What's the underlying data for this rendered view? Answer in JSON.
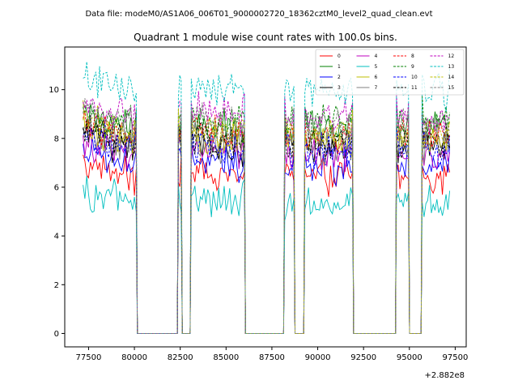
{
  "suptitle": "Data file: modeM0/AS1A06_006T01_9000002720_18362cztM0_level2_quad_clean.evt",
  "chart_data": {
    "type": "line",
    "title": "Quadrant 1 module wise count rates with 100.0s bins.",
    "xlabel": "",
    "ylabel": "",
    "x_offset_label": "+2.882e8",
    "xlim": [
      76200,
      98100
    ],
    "ylim": [
      -0.55,
      11.75
    ],
    "x_ticks": [
      77500,
      80000,
      82500,
      85000,
      87500,
      90000,
      92500,
      95000,
      97500
    ],
    "x_tick_labels": [
      "77500",
      "80000",
      "82500",
      "85000",
      "87500",
      "90000",
      "92500",
      "95000",
      "97500"
    ],
    "y_ticks": [
      0,
      2,
      4,
      6,
      8,
      10
    ],
    "y_tick_labels": [
      "0",
      "2",
      "4",
      "6",
      "8",
      "10"
    ],
    "active_intervals": [
      [
        77200,
        80100
      ],
      [
        82400,
        82550
      ],
      [
        83100,
        86000
      ],
      [
        88200,
        88700
      ],
      [
        89300,
        91900
      ],
      [
        94300,
        94950
      ],
      [
        95700,
        97200
      ]
    ],
    "gaps": [
      [
        80100,
        82400
      ],
      [
        82550,
        83100
      ],
      [
        86000,
        88200
      ],
      [
        88700,
        89300
      ],
      [
        91900,
        94300
      ],
      [
        94950,
        95700
      ]
    ],
    "legend_position": "top-right",
    "series": [
      {
        "name": "0",
        "level": 6.4,
        "color": "#ff0000",
        "dash": "solid"
      },
      {
        "name": "1",
        "level": 8.4,
        "color": "#008000",
        "dash": "solid"
      },
      {
        "name": "2",
        "level": 6.9,
        "color": "#0000ff",
        "dash": "solid"
      },
      {
        "name": "3",
        "level": 7.6,
        "color": "#000000",
        "dash": "solid"
      },
      {
        "name": "4",
        "level": 7.3,
        "color": "#bf00bf",
        "dash": "solid"
      },
      {
        "name": "5",
        "level": 5.3,
        "color": "#00bfbf",
        "dash": "solid"
      },
      {
        "name": "6",
        "level": 7.9,
        "color": "#bfbf00",
        "dash": "solid"
      },
      {
        "name": "7",
        "level": 7.7,
        "color": "#808080",
        "dash": "solid"
      },
      {
        "name": "8",
        "level": 8.1,
        "color": "#ff0000",
        "dash": "dashed"
      },
      {
        "name": "9",
        "level": 8.6,
        "color": "#008000",
        "dash": "dashed"
      },
      {
        "name": "10",
        "level": 7.5,
        "color": "#0000ff",
        "dash": "dashed"
      },
      {
        "name": "11",
        "level": 7.8,
        "color": "#000000",
        "dash": "dashed"
      },
      {
        "name": "12",
        "level": 8.9,
        "color": "#bf00bf",
        "dash": "dashed"
      },
      {
        "name": "13",
        "level": 9.9,
        "color": "#00bfbf",
        "dash": "dashed"
      },
      {
        "name": "14",
        "level": 8.2,
        "color": "#bfbf00",
        "dash": "dashed"
      },
      {
        "name": "15",
        "level": 8.5,
        "color": "#808080",
        "dash": "dashed"
      }
    ]
  }
}
